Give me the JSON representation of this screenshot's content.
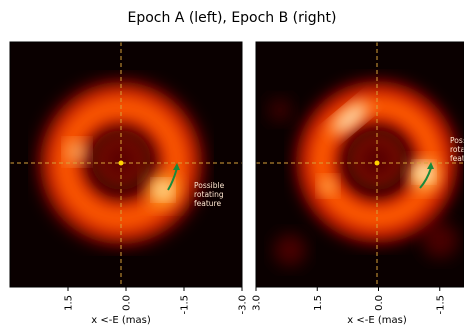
{
  "figure": {
    "title": "Epoch A (left), Epoch B (right)"
  },
  "chart_data": [
    {
      "type": "heatmap",
      "panel": "Epoch A",
      "xlabel": "x <-E (mas)",
      "xlim": [
        3.0,
        -3.0
      ],
      "xticks": [
        "1.5",
        "0.0",
        "-1.5",
        "-3.0"
      ],
      "ylim": [
        -3.0,
        3.0
      ],
      "colormap": "hot",
      "crosshair": [
        0.0,
        0.0
      ],
      "ring": {
        "center": [
          0.0,
          0.0
        ],
        "radius_mas": 1.55,
        "brightest_pa_deg": 240
      },
      "bright_spot": {
        "x": -1.2,
        "y": -0.55
      },
      "arrow": {
        "from": [
          -1.2,
          -0.65
        ],
        "to": [
          -1.5,
          0.0
        ],
        "color": "#1a8a3a"
      },
      "annotation": {
        "lines": [
          "Possible",
          "rotating",
          "feature"
        ],
        "x": -1.95,
        "y": -0.55
      }
    },
    {
      "type": "heatmap",
      "panel": "Epoch B",
      "xlabel": "x <-E (mas)",
      "xlim": [
        3.0,
        -3.0
      ],
      "xticks": [
        "3.0",
        "1.5",
        "0.0",
        "-1.5"
      ],
      "ylim": [
        -3.0,
        3.0
      ],
      "colormap": "hot",
      "crosshair": [
        0.0,
        0.0
      ],
      "ring": {
        "center": [
          0.0,
          0.0
        ],
        "radius_mas": 1.55,
        "brightest_pa_deg": 300
      },
      "bright_spot": {
        "x": -1.3,
        "y": -0.3
      },
      "arrow": {
        "from": [
          -1.15,
          -0.6
        ],
        "to": [
          -1.45,
          0.0
        ],
        "color": "#1a8a3a"
      },
      "annotation": {
        "lines": [
          "Possible",
          "rotating",
          "feature"
        ],
        "x": -1.95,
        "y": 0.35
      }
    }
  ]
}
